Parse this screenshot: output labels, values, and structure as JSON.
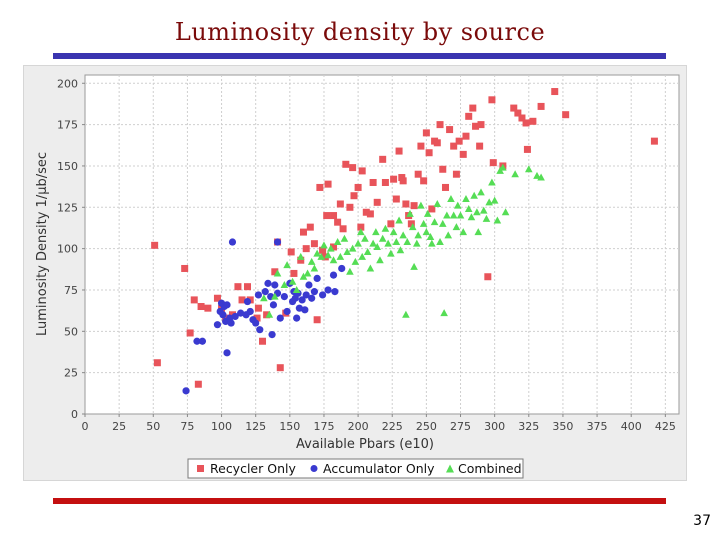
{
  "slide": {
    "title": "Luminosity density by source",
    "page_number": "37"
  },
  "colors": {
    "recycler": "#e8545a",
    "accumulator": "#3a3ad0",
    "combined": "#55dd55",
    "plot_background": "#ffffff",
    "gridline": "#cfcfcf",
    "title_rule": "#3a34b0",
    "footer_rule": "#c40f10"
  },
  "chart_data": {
    "type": "scatter",
    "xlabel": "Available Pbars (e10)",
    "ylabel": "Luminosity Density 1/μb/sec",
    "xlim": [
      0,
      435
    ],
    "ylim": [
      0,
      205
    ],
    "xticks": [
      0,
      25,
      50,
      75,
      100,
      125,
      150,
      175,
      200,
      225,
      250,
      275,
      300,
      325,
      350,
      375,
      400,
      425
    ],
    "yticks": [
      0,
      25,
      50,
      75,
      100,
      125,
      150,
      175,
      200
    ],
    "grid": "dashed",
    "legend_position": "bottom",
    "series": [
      {
        "name": "Recycler Only",
        "marker": "square",
        "points": [
          [
            51,
            102
          ],
          [
            53,
            31
          ],
          [
            73,
            88
          ],
          [
            77,
            49
          ],
          [
            80,
            69
          ],
          [
            83,
            18
          ],
          [
            85,
            65
          ],
          [
            90,
            64
          ],
          [
            97,
            70
          ],
          [
            100,
            64
          ],
          [
            103,
            58
          ],
          [
            108,
            60
          ],
          [
            112,
            77
          ],
          [
            115,
            69
          ],
          [
            119,
            77
          ],
          [
            121,
            69
          ],
          [
            126,
            58
          ],
          [
            127,
            64
          ],
          [
            130,
            44
          ],
          [
            133,
            60
          ],
          [
            139,
            86
          ],
          [
            141,
            104
          ],
          [
            143,
            28
          ],
          [
            147,
            61
          ],
          [
            151,
            98
          ],
          [
            153,
            85
          ],
          [
            158,
            93
          ],
          [
            160,
            110
          ],
          [
            162,
            100
          ],
          [
            165,
            113
          ],
          [
            168,
            103
          ],
          [
            170,
            57
          ],
          [
            172,
            137
          ],
          [
            174,
            99
          ],
          [
            176,
            95
          ],
          [
            177,
            120
          ],
          [
            178,
            139
          ],
          [
            182,
            101
          ],
          [
            182,
            120
          ],
          [
            185,
            116
          ],
          [
            187,
            127
          ],
          [
            189,
            112
          ],
          [
            191,
            151
          ],
          [
            194,
            125
          ],
          [
            196,
            149
          ],
          [
            197,
            132
          ],
          [
            200,
            137
          ],
          [
            202,
            113
          ],
          [
            203,
            147
          ],
          [
            206,
            122
          ],
          [
            209,
            121
          ],
          [
            211,
            140
          ],
          [
            214,
            128
          ],
          [
            218,
            154
          ],
          [
            220,
            140
          ],
          [
            224,
            115
          ],
          [
            226,
            142
          ],
          [
            228,
            130
          ],
          [
            230,
            159
          ],
          [
            232,
            143
          ],
          [
            233,
            141
          ],
          [
            235,
            127
          ],
          [
            237,
            120
          ],
          [
            239,
            115
          ],
          [
            241,
            126
          ],
          [
            244,
            145
          ],
          [
            246,
            162
          ],
          [
            248,
            141
          ],
          [
            250,
            170
          ],
          [
            252,
            158
          ],
          [
            254,
            124
          ],
          [
            256,
            165
          ],
          [
            258,
            164
          ],
          [
            260,
            175
          ],
          [
            262,
            148
          ],
          [
            264,
            137
          ],
          [
            267,
            172
          ],
          [
            270,
            162
          ],
          [
            272,
            145
          ],
          [
            274,
            165
          ],
          [
            277,
            157
          ],
          [
            279,
            168
          ],
          [
            281,
            180
          ],
          [
            284,
            185
          ],
          [
            286,
            174
          ],
          [
            289,
            162
          ],
          [
            290,
            175
          ],
          [
            295,
            83
          ],
          [
            298,
            190
          ],
          [
            299,
            152
          ],
          [
            306,
            150
          ],
          [
            314,
            185
          ],
          [
            317,
            182
          ],
          [
            320,
            179
          ],
          [
            323,
            176
          ],
          [
            324,
            160
          ],
          [
            328,
            177
          ],
          [
            334,
            186
          ],
          [
            344,
            195
          ],
          [
            352,
            181
          ],
          [
            417,
            165
          ]
        ]
      },
      {
        "name": "Accumulator Only",
        "marker": "circle",
        "points": [
          [
            74,
            14
          ],
          [
            82,
            44
          ],
          [
            86,
            44
          ],
          [
            97,
            54
          ],
          [
            99,
            62
          ],
          [
            100,
            67
          ],
          [
            101,
            60
          ],
          [
            102,
            65
          ],
          [
            103,
            56
          ],
          [
            104,
            66
          ],
          [
            104,
            37
          ],
          [
            106,
            58
          ],
          [
            107,
            55
          ],
          [
            108,
            104
          ],
          [
            110,
            59
          ],
          [
            114,
            61
          ],
          [
            118,
            60
          ],
          [
            119,
            68
          ],
          [
            121,
            62
          ],
          [
            123,
            57
          ],
          [
            125,
            55
          ],
          [
            127,
            72
          ],
          [
            128,
            51
          ],
          [
            132,
            74
          ],
          [
            134,
            79
          ],
          [
            136,
            71
          ],
          [
            137,
            48
          ],
          [
            138,
            66
          ],
          [
            139,
            78
          ],
          [
            141,
            104
          ],
          [
            141,
            73
          ],
          [
            143,
            58
          ],
          [
            146,
            71
          ],
          [
            148,
            62
          ],
          [
            150,
            79
          ],
          [
            152,
            68
          ],
          [
            153,
            74
          ],
          [
            154,
            70
          ],
          [
            155,
            58
          ],
          [
            156,
            73
          ],
          [
            157,
            64
          ],
          [
            159,
            69
          ],
          [
            161,
            63
          ],
          [
            162,
            72
          ],
          [
            164,
            78
          ],
          [
            166,
            70
          ],
          [
            168,
            74
          ],
          [
            170,
            82
          ],
          [
            174,
            72
          ],
          [
            178,
            75
          ],
          [
            182,
            84
          ],
          [
            183,
            74
          ],
          [
            188,
            88
          ]
        ]
      },
      {
        "name": "Combined",
        "marker": "triangle",
        "points": [
          [
            131,
            70
          ],
          [
            135,
            60
          ],
          [
            139,
            71
          ],
          [
            141,
            85
          ],
          [
            146,
            78
          ],
          [
            148,
            90
          ],
          [
            152,
            80
          ],
          [
            155,
            75
          ],
          [
            158,
            95
          ],
          [
            160,
            83
          ],
          [
            163,
            85
          ],
          [
            166,
            92
          ],
          [
            168,
            88
          ],
          [
            170,
            97
          ],
          [
            173,
            95
          ],
          [
            175,
            102
          ],
          [
            178,
            96
          ],
          [
            180,
            100
          ],
          [
            182,
            93
          ],
          [
            185,
            104
          ],
          [
            187,
            95
          ],
          [
            190,
            106
          ],
          [
            192,
            98
          ],
          [
            194,
            86
          ],
          [
            196,
            100
          ],
          [
            198,
            92
          ],
          [
            200,
            103
          ],
          [
            202,
            110
          ],
          [
            203,
            95
          ],
          [
            205,
            106
          ],
          [
            207,
            98
          ],
          [
            209,
            88
          ],
          [
            211,
            103
          ],
          [
            213,
            110
          ],
          [
            214,
            101
          ],
          [
            216,
            93
          ],
          [
            218,
            106
          ],
          [
            220,
            112
          ],
          [
            222,
            103
          ],
          [
            224,
            97
          ],
          [
            226,
            110
          ],
          [
            228,
            104
          ],
          [
            230,
            117
          ],
          [
            231,
            99
          ],
          [
            233,
            108
          ],
          [
            235,
            60
          ],
          [
            236,
            104
          ],
          [
            238,
            121
          ],
          [
            240,
            113
          ],
          [
            241,
            89
          ],
          [
            243,
            103
          ],
          [
            244,
            108
          ],
          [
            246,
            126
          ],
          [
            248,
            115
          ],
          [
            250,
            110
          ],
          [
            251,
            121
          ],
          [
            253,
            107
          ],
          [
            254,
            103
          ],
          [
            256,
            116
          ],
          [
            258,
            127
          ],
          [
            260,
            104
          ],
          [
            262,
            115
          ],
          [
            263,
            61
          ],
          [
            265,
            120
          ],
          [
            266,
            108
          ],
          [
            268,
            130
          ],
          [
            270,
            120
          ],
          [
            272,
            113
          ],
          [
            273,
            126
          ],
          [
            275,
            120
          ],
          [
            277,
            110
          ],
          [
            279,
            130
          ],
          [
            281,
            124
          ],
          [
            283,
            119
          ],
          [
            285,
            132
          ],
          [
            287,
            122
          ],
          [
            288,
            110
          ],
          [
            290,
            134
          ],
          [
            292,
            123
          ],
          [
            294,
            118
          ],
          [
            296,
            128
          ],
          [
            298,
            140
          ],
          [
            300,
            129
          ],
          [
            302,
            117
          ],
          [
            304,
            147
          ],
          [
            306,
            149
          ],
          [
            308,
            122
          ],
          [
            315,
            145
          ],
          [
            325,
            148
          ],
          [
            331,
            144
          ],
          [
            334,
            143
          ]
        ]
      }
    ]
  }
}
